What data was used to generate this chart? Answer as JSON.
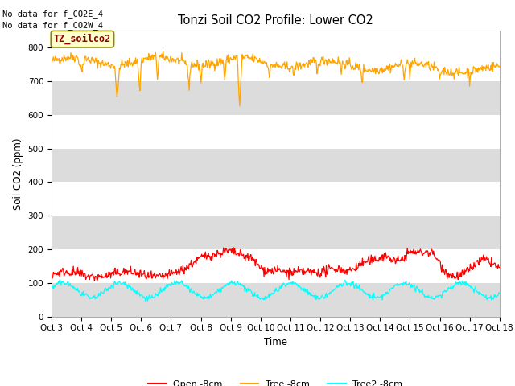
{
  "title": "Tonzi Soil CO2 Profile: Lower CO2",
  "ylabel": "Soil CO2 (ppm)",
  "xlabel": "Time",
  "no_data_text": [
    "No data for f_CO2E_4",
    "No data for f_CO2W_4"
  ],
  "legend_box_label": "TZ_soilco2",
  "x_tick_labels": [
    "Oct 3",
    "Oct 4",
    "Oct 5",
    "Oct 6",
    "Oct 7",
    "Oct 8",
    "Oct 9",
    "Oct 10",
    "Oct 11",
    "Oct 12",
    "Oct 13",
    "Oct 14",
    "Oct 15",
    "Oct 16",
    "Oct 17",
    "Oct 18"
  ],
  "ylim": [
    0,
    850
  ],
  "yticks": [
    0,
    100,
    200,
    300,
    400,
    500,
    600,
    700,
    800
  ],
  "colors": {
    "open": "#ff0000",
    "tree": "#ffa500",
    "tree2": "#00ffff",
    "bg_plot": "#ffffff",
    "band_gray": "#dcdcdc",
    "legend_box_bg": "#ffffcc",
    "legend_box_edge": "#888800"
  },
  "legend_labels": [
    "Open -8cm",
    "Tree -8cm",
    "Tree2 -8cm"
  ],
  "n_points": 720
}
